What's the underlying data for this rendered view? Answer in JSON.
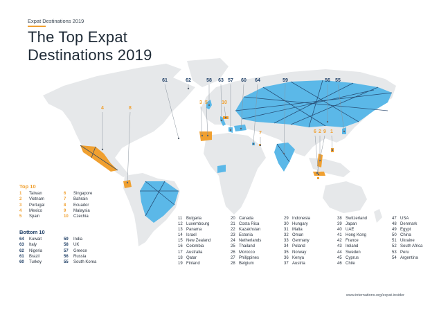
{
  "kicker": "Expat Destinations 2019",
  "title_line1": "The Top Expat",
  "title_line2": "Destinations 2019",
  "map_markers": [
    {
      "label": "61",
      "tone": "blue"
    },
    {
      "label": "62",
      "tone": "blue"
    },
    {
      "label": "58",
      "tone": "blue"
    },
    {
      "label": "63",
      "tone": "blue"
    },
    {
      "label": "57",
      "tone": "blue"
    },
    {
      "label": "60",
      "tone": "blue"
    },
    {
      "label": "64",
      "tone": "blue"
    },
    {
      "label": "59",
      "tone": "blue"
    },
    {
      "label": "56",
      "tone": "blue"
    },
    {
      "label": "55",
      "tone": "blue"
    },
    {
      "label": "4",
      "tone": "orange"
    },
    {
      "label": "8",
      "tone": "orange"
    },
    {
      "label": "3",
      "tone": "orange"
    },
    {
      "label": "5",
      "tone": "orange"
    },
    {
      "label": "10",
      "tone": "orange"
    },
    {
      "label": "7",
      "tone": "orange"
    },
    {
      "label": "6",
      "tone": "orange"
    },
    {
      "label": "2",
      "tone": "orange"
    },
    {
      "label": "9",
      "tone": "orange"
    },
    {
      "label": "1",
      "tone": "orange"
    }
  ],
  "top10": {
    "heading": "Top 10",
    "col1": [
      {
        "n": "1",
        "country": "Taiwan"
      },
      {
        "n": "2",
        "country": "Vietnam"
      },
      {
        "n": "3",
        "country": "Portugal"
      },
      {
        "n": "4",
        "country": "Mexico"
      },
      {
        "n": "5",
        "country": "Spain"
      }
    ],
    "col2": [
      {
        "n": "6",
        "country": "Singapore"
      },
      {
        "n": "7",
        "country": "Bahrain"
      },
      {
        "n": "8",
        "country": "Ecuador"
      },
      {
        "n": "9",
        "country": "Malaysia"
      },
      {
        "n": "10",
        "country": "Czechia"
      }
    ]
  },
  "bottom10": {
    "heading": "Bottom 10",
    "col1": [
      {
        "n": "64",
        "country": "Kuwait"
      },
      {
        "n": "63",
        "country": "Italy"
      },
      {
        "n": "62",
        "country": "Nigeria"
      },
      {
        "n": "61",
        "country": "Brazil"
      },
      {
        "n": "60",
        "country": "Turkey"
      }
    ],
    "col2": [
      {
        "n": "59",
        "country": "India"
      },
      {
        "n": "58",
        "country": "UK"
      },
      {
        "n": "57",
        "country": "Greece"
      },
      {
        "n": "56",
        "country": "Russia"
      },
      {
        "n": "55",
        "country": "South Korea"
      }
    ]
  },
  "rankings": [
    [
      {
        "n": "11",
        "country": "Bulgaria"
      },
      {
        "n": "12",
        "country": "Luxembourg"
      },
      {
        "n": "13",
        "country": "Panama"
      },
      {
        "n": "14",
        "country": "Israel"
      },
      {
        "n": "15",
        "country": "New Zealand"
      },
      {
        "n": "16",
        "country": "Colombia"
      },
      {
        "n": "17",
        "country": "Australia"
      },
      {
        "n": "18",
        "country": "Qatar"
      },
      {
        "n": "19",
        "country": "Finland"
      }
    ],
    [
      {
        "n": "20",
        "country": "Canada"
      },
      {
        "n": "21",
        "country": "Costa Rica"
      },
      {
        "n": "22",
        "country": "Kazakhstan"
      },
      {
        "n": "23",
        "country": "Estonia"
      },
      {
        "n": "24",
        "country": "Netherlands"
      },
      {
        "n": "25",
        "country": "Thailand"
      },
      {
        "n": "26",
        "country": "Morocco"
      },
      {
        "n": "27",
        "country": "Philippines"
      },
      {
        "n": "28",
        "country": "Belgium"
      }
    ],
    [
      {
        "n": "29",
        "country": "Indonesia"
      },
      {
        "n": "30",
        "country": "Hungary"
      },
      {
        "n": "31",
        "country": "Malta"
      },
      {
        "n": "32",
        "country": "Oman"
      },
      {
        "n": "33",
        "country": "Germany"
      },
      {
        "n": "34",
        "country": "Poland"
      },
      {
        "n": "35",
        "country": "Norway"
      },
      {
        "n": "36",
        "country": "Kenya"
      },
      {
        "n": "37",
        "country": "Austria"
      }
    ],
    [
      {
        "n": "38",
        "country": "Switzerland"
      },
      {
        "n": "39",
        "country": "Japan"
      },
      {
        "n": "40",
        "country": "UAE"
      },
      {
        "n": "41",
        "country": "Hong Kong"
      },
      {
        "n": "42",
        "country": "France"
      },
      {
        "n": "43",
        "country": "Ireland"
      },
      {
        "n": "44",
        "country": "Sweden"
      },
      {
        "n": "45",
        "country": "Cyprus"
      },
      {
        "n": "46",
        "country": "Chile"
      }
    ],
    [
      {
        "n": "47",
        "country": "USA"
      },
      {
        "n": "48",
        "country": "Denmark"
      },
      {
        "n": "49",
        "country": "Egypt"
      },
      {
        "n": "50",
        "country": "China"
      },
      {
        "n": "51",
        "country": "Ukraine"
      },
      {
        "n": "52",
        "country": "South Africa"
      },
      {
        "n": "53",
        "country": "Peru"
      },
      {
        "n": "54",
        "country": "Argentina"
      }
    ]
  ],
  "footer": "www.internations.org/expat-insider",
  "colors": {
    "orange": "#f0a030",
    "blue": "#5bb8e8",
    "navy": "#1f3f66",
    "land": "#e6e8ea"
  }
}
